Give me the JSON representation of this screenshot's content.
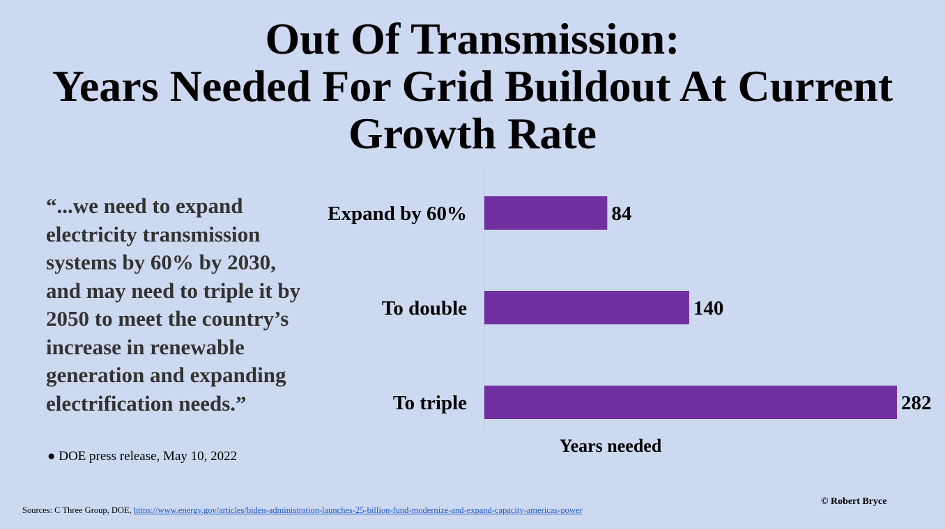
{
  "title": {
    "line1": "Out Of Transmission:",
    "line2": "Years Needed For Grid Buildout At Current",
    "line3": "Growth Rate"
  },
  "quote": {
    "text": "“...we need to expand electricity transmission systems by 60% by 2030, and may need to triple it by 2050 to meet the country’s increase in renewable generation and expanding electrification needs.”",
    "source": "● DOE press release, May 10,  2022"
  },
  "chart_data": {
    "type": "bar",
    "orientation": "horizontal",
    "categories": [
      "Expand by 60%",
      "To double",
      "To triple"
    ],
    "values": [
      84,
      140,
      282
    ],
    "xlabel": "Years needed",
    "ylabel": "",
    "xlim": [
      0,
      282
    ],
    "grid": false,
    "legend": "none",
    "data_labels": true,
    "bar_color": "#7030a0"
  },
  "footer": {
    "sources_prefix": "Sources: C Three Group, DOE, ",
    "sources_link": "https://www.energy.gov/articles/biden-administration-launches-25-billion-fund-modernize-and-expand-capacity-americas-power",
    "copyright": "© Robert Bryce"
  }
}
